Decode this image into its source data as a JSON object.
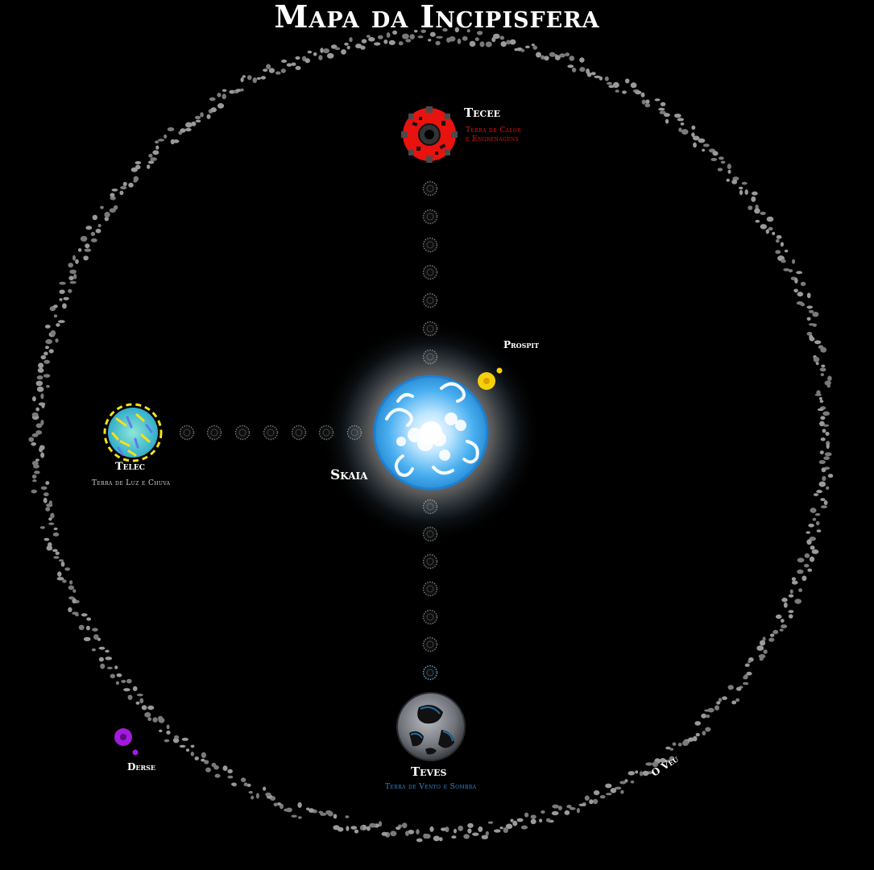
{
  "title": "Mapa da Incipisfera",
  "colors": {
    "background": "#000000",
    "veil": "#9a9a9a",
    "tecee_red": "#e8120f",
    "telec_gold": "#f2e21a",
    "teves_blue": "#3a86c8",
    "skaia_blue": "#3aa6ee",
    "prospit_gold": "#f6d10a",
    "derse_purple": "#a21bdb"
  },
  "bodies": {
    "skaia": {
      "name": "Skaia",
      "icon": "skaia-cloud-orb-icon"
    },
    "tecee": {
      "name": "Tecee",
      "subtitle": [
        "Terra de Calor",
        "e Engrenagens"
      ],
      "icon": "gear-planet-icon"
    },
    "telec": {
      "name": "Telec",
      "subtitle": [
        "Terra de Luz e Chuva"
      ],
      "icon": "rain-planet-icon"
    },
    "teves": {
      "name": "Teves",
      "subtitle": [
        "Terra de Vento e Sombra"
      ],
      "icon": "shadow-planet-icon"
    },
    "prospit": {
      "name": "Prospit",
      "icon": "golden-moon-icon"
    },
    "derse": {
      "name": "Derse",
      "icon": "purple-moon-icon"
    },
    "veil": {
      "name": "O Véu",
      "icon": "asteroid-ring-icon"
    }
  }
}
